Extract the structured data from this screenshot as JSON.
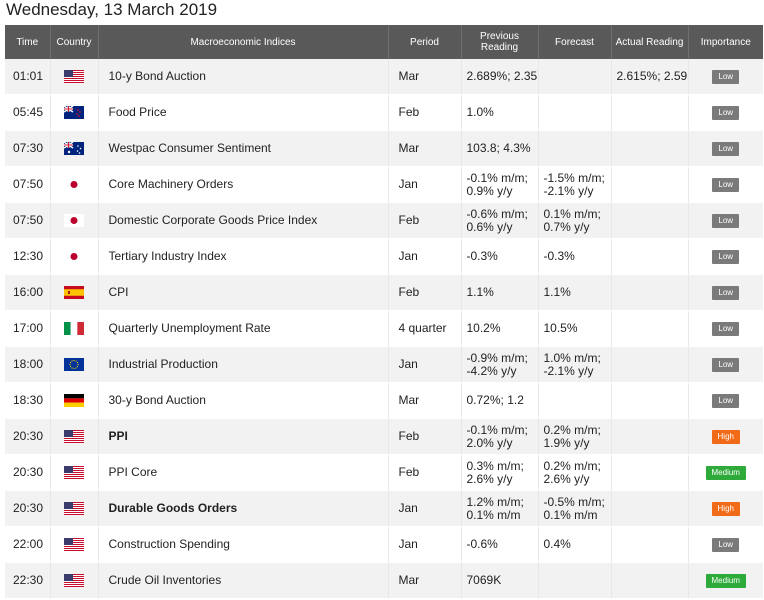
{
  "title": "Wednesday, 13 March 2019",
  "headers": {
    "time": "Time",
    "country": "Country",
    "indices": "Macroeconomic Indices",
    "period": "Period",
    "previous": "Previous Reading",
    "forecast": "Forecast",
    "actual": "Actual Reading",
    "importance": "Importance"
  },
  "rows": [
    {
      "time": "01:01",
      "country": "us",
      "name": "10-y Bond Auction",
      "bold": false,
      "period": "Mar",
      "previous": "2.689%; 2.35",
      "forecast": "",
      "actual": "2.615%; 2.59",
      "importance": "Low"
    },
    {
      "time": "05:45",
      "country": "nz",
      "name": "Food Price",
      "bold": false,
      "period": "Feb",
      "previous": "1.0%",
      "forecast": "",
      "actual": "",
      "importance": "Low"
    },
    {
      "time": "07:30",
      "country": "au",
      "name": "Westpac Consumer Sentiment",
      "bold": false,
      "period": "Mar",
      "previous": "103.8; 4.3%",
      "forecast": "",
      "actual": "",
      "importance": "Low"
    },
    {
      "time": "07:50",
      "country": "jp",
      "name": "Core Machinery Orders",
      "bold": false,
      "period": "Jan",
      "previous": "-0.1% m/m; 0.9% y/y",
      "forecast": "-1.5% m/m; -2.1% y/y",
      "actual": "",
      "importance": "Low"
    },
    {
      "time": "07:50",
      "country": "jp",
      "name": "Domestic Corporate Goods Price Index",
      "bold": false,
      "period": "Feb",
      "previous": "-0.6% m/m; 0.6% y/y",
      "forecast": "0.1% m/m; 0.7% y/y",
      "actual": "",
      "importance": "Low"
    },
    {
      "time": "12:30",
      "country": "jp",
      "name": "Tertiary Industry Index",
      "bold": false,
      "period": "Jan",
      "previous": "-0.3%",
      "forecast": "-0.3%",
      "actual": "",
      "importance": "Low"
    },
    {
      "time": "16:00",
      "country": "es",
      "name": "CPI",
      "bold": false,
      "period": "Feb",
      "previous": "1.1%",
      "forecast": "1.1%",
      "actual": "",
      "importance": "Low"
    },
    {
      "time": "17:00",
      "country": "it",
      "name": "Quarterly Unemployment Rate",
      "bold": false,
      "period": "4 quarter",
      "previous": "10.2%",
      "forecast": "10.5%",
      "actual": "",
      "importance": "Low"
    },
    {
      "time": "18:00",
      "country": "eu",
      "name": "Industrial Production",
      "bold": false,
      "period": "Jan",
      "previous": "-0.9% m/m; -4.2% y/y",
      "forecast": "1.0% m/m; -2.1% y/y",
      "actual": "",
      "importance": "Low"
    },
    {
      "time": "18:30",
      "country": "de",
      "name": "30-y Bond Auction",
      "bold": false,
      "period": "Mar",
      "previous": "0.72%; 1.2",
      "forecast": "",
      "actual": "",
      "importance": "Low"
    },
    {
      "time": "20:30",
      "country": "us",
      "name": "PPI",
      "bold": true,
      "period": "Feb",
      "previous": "-0.1% m/m; 2.0% y/y",
      "forecast": "0.2% m/m; 1.9% y/y",
      "actual": "",
      "importance": "High"
    },
    {
      "time": "20:30",
      "country": "us",
      "name": "PPI Core",
      "bold": false,
      "period": "Feb",
      "previous": "0.3% m/m; 2.6% y/y",
      "forecast": "0.2% m/m; 2.6% y/y",
      "actual": "",
      "importance": "Medium"
    },
    {
      "time": "20:30",
      "country": "us",
      "name": "Durable Goods Orders",
      "bold": true,
      "period": "Jan",
      "previous": "1.2% m/m; 0.1% m/m",
      "forecast": "-0.5% m/m; 0.1% m/m",
      "actual": "",
      "importance": "High"
    },
    {
      "time": "22:00",
      "country": "us",
      "name": "Construction Spending",
      "bold": false,
      "period": "Jan",
      "previous": "-0.6%",
      "forecast": "0.4%",
      "actual": "",
      "importance": "Low"
    },
    {
      "time": "22:30",
      "country": "us",
      "name": "Crude Oil Inventories",
      "bold": false,
      "period": "Mar",
      "previous": "7069K",
      "forecast": "",
      "actual": "",
      "importance": "Medium"
    }
  ]
}
